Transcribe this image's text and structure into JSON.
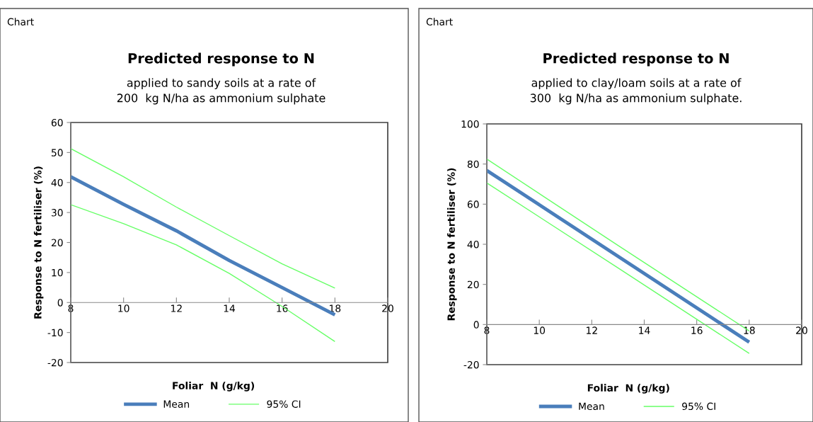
{
  "chart_data": [
    {
      "type": "line",
      "title": "Predicted response to N",
      "subtitle": "applied to sandy soils at a rate of\n200  kg N/ha as ammonium sulphate",
      "xlabel": "Foliar  N (g/kg)",
      "ylabel": "Response to N fertiliser (%)",
      "annotations": [
        "Chart"
      ],
      "x": [
        8,
        10,
        12,
        14,
        16,
        18
      ],
      "series": [
        {
          "name": "Mean",
          "color": "#4a7ebb",
          "values": [
            41.9,
            32.7,
            23.9,
            14.0,
            5.0,
            -4.1
          ]
        },
        {
          "name": "95% CI",
          "color": "#66ff66",
          "values": [
            51.3,
            41.9,
            31.8,
            22.3,
            12.9,
            4.8
          ]
        },
        {
          "color": "#66ff66",
          "values": [
            32.6,
            26.3,
            19.2,
            9.7,
            -1.3,
            -13.0
          ]
        }
      ],
      "xlim": [
        8,
        20
      ],
      "xticks": [
        8,
        10,
        12,
        14,
        16,
        18,
        20
      ],
      "ylim": [
        -20,
        60
      ],
      "yticks": [
        -20,
        -10,
        0,
        10,
        20,
        30,
        40,
        50,
        60
      ],
      "grid": false,
      "legend": "bottom",
      "marker": "none",
      "line_style": "solid"
    },
    {
      "type": "line",
      "title": "Predicted response to N",
      "subtitle": "applied to clay/loam soils at a rate of\n300  kg N/ha as ammonium sulphate.",
      "xlabel": "Foliar  N (g/kg)",
      "ylabel": "Response to N fertiliser (%)",
      "annotations": [
        "Chart"
      ],
      "x": [
        8,
        13,
        18
      ],
      "series": [
        {
          "name": "Mean",
          "color": "#4a7ebb",
          "values": [
            76.8,
            34.0,
            -8.8
          ]
        },
        {
          "name": "95% CI",
          "color": "#66ff66",
          "values": [
            82.5,
            39.4,
            -3.2
          ]
        },
        {
          "color": "#66ff66",
          "values": [
            70.6,
            28.2,
            -14.4
          ]
        }
      ],
      "xlim": [
        8,
        20
      ],
      "xticks": [
        8,
        10,
        12,
        14,
        16,
        18,
        20
      ],
      "ylim": [
        -20,
        100
      ],
      "yticks": [
        -20,
        0,
        20,
        40,
        60,
        80,
        100
      ],
      "grid": false,
      "legend": "bottom",
      "marker": "none",
      "line_style": "solid"
    }
  ]
}
